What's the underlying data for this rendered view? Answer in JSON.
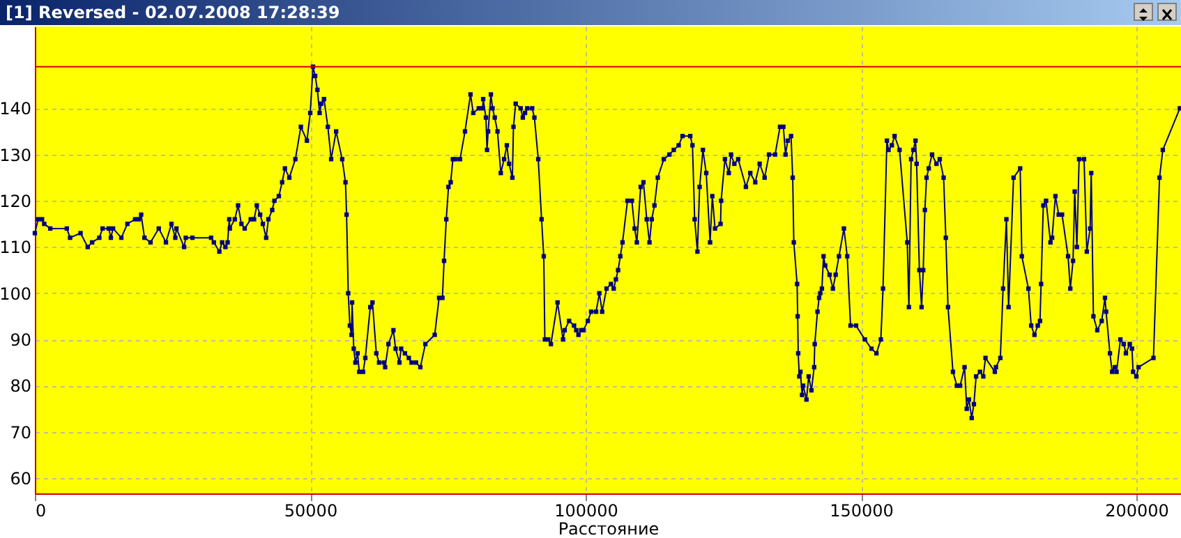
{
  "chart_data": {
    "type": "line",
    "title": "[1] Reversed - 02.07.2008 17:28:39",
    "xlabel": "Расстояние",
    "xlim": [
      0,
      208100
    ],
    "xticks": [
      0,
      50000,
      100000,
      150000,
      200000
    ],
    "ylim": [
      56.7,
      157.7
    ],
    "yticks": [
      60,
      70,
      80,
      90,
      100,
      110,
      120,
      130,
      140
    ],
    "grid": true,
    "marker": "square",
    "line_style": "solid",
    "ref_lines": [
      {
        "axis": "y",
        "value": 149,
        "color": "#cc0000"
      }
    ],
    "series": [
      {
        "color": "#000080",
        "x": [
          0,
          600,
          1300,
          1700,
          2800,
          5800,
          6400,
          8300,
          9600,
          10400,
          11700,
          12300,
          13400,
          13800,
          14200,
          15700,
          16800,
          18200,
          18900,
          19300,
          19900,
          21000,
          22500,
          23800,
          24800,
          25500,
          25700,
          27100,
          27400,
          28600,
          32000,
          32500,
          33500,
          34000,
          34600,
          35000,
          35300,
          35400,
          36300,
          36900,
          37500,
          38100,
          39200,
          39800,
          40300,
          40900,
          41400,
          42000,
          42400,
          43100,
          43500,
          44300,
          44900,
          45400,
          46200,
          47300,
          48300,
          49400,
          50000,
          50500,
          50900,
          51300,
          51700,
          52000,
          52500,
          53200,
          53800,
          54700,
          55800,
          56400,
          56600,
          56900,
          57200,
          57500,
          57600,
          57900,
          58200,
          58600,
          58900,
          59600,
          60000,
          60900,
          61300,
          62000,
          62500,
          63400,
          63600,
          64200,
          65100,
          65500,
          66200,
          66500,
          67200,
          67900,
          68400,
          69200,
          70000,
          70900,
          72600,
          73400,
          74000,
          74300,
          74700,
          75100,
          75500,
          75900,
          76400,
          77200,
          78100,
          79100,
          79600,
          80600,
          81300,
          81400,
          81900,
          82100,
          82300,
          82800,
          83100,
          83500,
          84000,
          84600,
          85200,
          85700,
          86100,
          86700,
          86900,
          87300,
          88200,
          88600,
          89000,
          89400,
          90300,
          90700,
          91400,
          92000,
          92400,
          92600,
          93200,
          93700,
          94900,
          95900,
          96200,
          97000,
          97900,
          98300,
          98700,
          99200,
          99600,
          100400,
          101000,
          101900,
          102500,
          103000,
          103800,
          104600,
          105100,
          105500,
          105900,
          106300,
          106700,
          107600,
          108400,
          108900,
          109300,
          110000,
          110500,
          111100,
          111600,
          112000,
          112500,
          113100,
          114200,
          115200,
          116000,
          116900,
          117600,
          119000,
          119400,
          119800,
          120300,
          120700,
          121300,
          121900,
          122600,
          123000,
          123500,
          124500,
          124600,
          125300,
          126000,
          126400,
          127000,
          127700,
          129100,
          129900,
          130800,
          131600,
          132500,
          133300,
          134400,
          135300,
          135900,
          136300,
          136700,
          137300,
          137600,
          137800,
          138400,
          138500,
          138600,
          138800,
          139000,
          139300,
          139500,
          140100,
          140500,
          141000,
          141500,
          141600,
          142100,
          142400,
          142600,
          142900,
          143200,
          143500,
          144300,
          144900,
          145400,
          146000,
          146900,
          147500,
          148100,
          149100,
          150700,
          151900,
          152800,
          153600,
          154000,
          154700,
          155000,
          155600,
          156100,
          157000,
          158400,
          158700,
          159100,
          159500,
          159900,
          160100,
          160600,
          161000,
          161300,
          161600,
          161900,
          162300,
          162900,
          163700,
          164300,
          165000,
          165400,
          165800,
          166700,
          167400,
          168000,
          168800,
          169200,
          169600,
          170100,
          170500,
          170900,
          171600,
          172200,
          172600,
          174300,
          174500,
          175300,
          175800,
          176400,
          176800,
          177700,
          178900,
          179200,
          180400,
          180900,
          181500,
          182100,
          182500,
          182700,
          183100,
          183600,
          184400,
          184700,
          185300,
          185900,
          186500,
          187600,
          188000,
          188500,
          188800,
          189200,
          189600,
          190500,
          191000,
          191600,
          191800,
          192200,
          192900,
          193700,
          194300,
          194500,
          195200,
          195600,
          196100,
          196400,
          197100,
          197700,
          198100,
          198800,
          199200,
          199400,
          200000,
          200400,
          203100,
          204200,
          204800,
          207900
        ],
        "values": [
          113,
          116,
          116,
          115,
          114,
          114,
          112,
          113,
          110,
          111,
          112,
          114,
          114,
          112,
          114,
          112,
          115,
          116,
          116,
          117,
          112,
          111,
          114,
          111,
          115,
          112,
          114,
          110,
          112,
          112,
          112,
          111,
          109,
          111,
          110,
          111,
          116,
          114,
          116,
          119,
          115,
          114,
          116,
          116,
          119,
          117,
          115,
          112,
          116,
          118,
          120,
          121,
          124,
          127,
          125,
          129,
          136,
          133,
          139,
          149,
          147,
          144,
          139,
          141,
          142,
          136,
          129,
          135,
          129,
          124,
          117,
          100,
          93,
          91,
          98,
          88,
          85,
          87,
          83,
          83,
          86,
          97,
          98,
          87,
          85,
          85,
          84,
          89,
          92,
          88,
          85,
          88,
          87,
          86,
          85,
          85,
          84,
          89,
          91,
          99,
          99,
          107,
          116,
          123,
          124,
          129,
          129,
          129,
          135,
          143,
          139,
          140,
          140,
          142,
          138,
          131,
          135,
          143,
          140,
          138,
          135,
          126,
          129,
          132,
          128,
          125,
          136,
          141,
          140,
          138,
          139,
          140,
          140,
          138,
          129,
          116,
          108,
          90,
          90,
          89,
          98,
          90,
          92,
          94,
          93,
          92,
          91,
          92,
          92,
          94,
          96,
          96,
          100,
          96,
          101,
          102,
          101,
          103,
          105,
          108,
          111,
          120,
          120,
          114,
          111,
          123,
          124,
          116,
          111,
          116,
          119,
          125,
          129,
          130,
          131,
          132,
          134,
          134,
          132,
          116,
          109,
          123,
          131,
          126,
          111,
          121,
          114,
          115,
          120,
          129,
          126,
          130,
          128,
          129,
          123,
          126,
          124,
          128,
          125,
          130,
          130,
          136,
          136,
          130,
          133,
          134,
          125,
          111,
          102,
          95,
          87,
          82,
          83,
          78,
          80,
          77,
          82,
          79,
          84,
          89,
          96,
          99,
          100,
          101,
          108,
          106,
          104,
          101,
          104,
          108,
          114,
          108,
          93,
          93,
          90,
          88,
          87,
          90,
          101,
          133,
          131,
          132,
          134,
          131,
          111,
          97,
          129,
          131,
          133,
          128,
          105,
          97,
          105,
          118,
          125,
          127,
          130,
          128,
          129,
          125,
          112,
          97,
          83,
          80,
          80,
          84,
          75,
          77,
          73,
          76,
          82,
          83,
          82,
          86,
          83,
          84,
          86,
          101,
          116,
          97,
          125,
          127,
          108,
          101,
          93,
          91,
          93,
          94,
          102,
          119,
          120,
          111,
          112,
          121,
          117,
          117,
          108,
          101,
          107,
          122,
          110,
          129,
          129,
          109,
          114,
          126,
          95,
          92,
          94,
          99,
          96,
          87,
          83,
          84,
          83,
          90,
          89,
          87,
          89,
          88,
          83,
          82,
          84,
          86,
          125,
          131,
          140
        ]
      }
    ]
  }
}
